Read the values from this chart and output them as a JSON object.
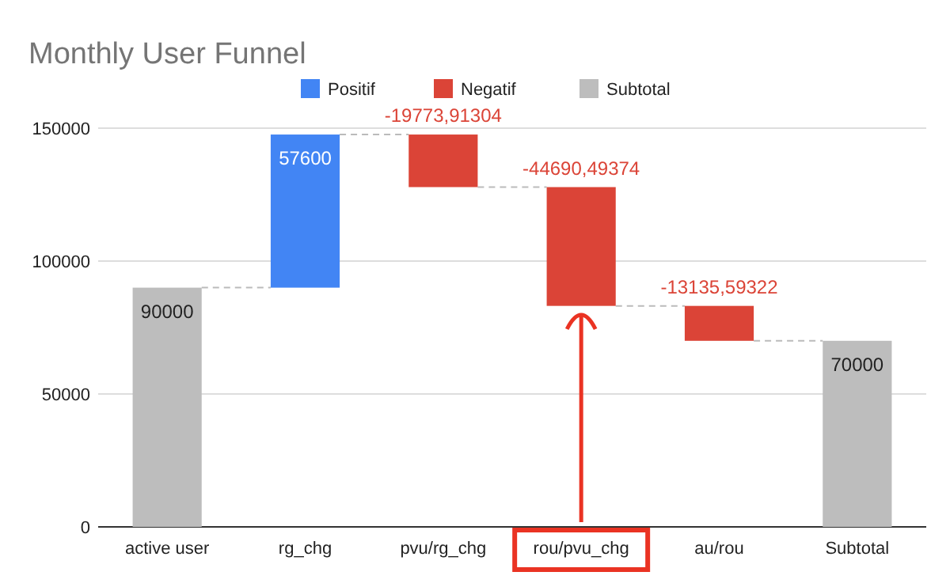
{
  "chart_data": {
    "type": "bar",
    "title": "Monthly User Funnel",
    "categories": [
      "active user",
      "rg_chg",
      "pvu/rg_chg",
      "rou/pvu_chg",
      "au/rou",
      "Subtotal"
    ],
    "series": [
      {
        "name": "Positif",
        "color": "#4285f4",
        "values": [
          null,
          57600,
          null,
          null,
          null,
          null
        ],
        "base": [
          null,
          90000,
          null,
          null,
          null,
          null
        ],
        "value_labels": [
          null,
          "57600",
          null,
          null,
          null,
          null
        ]
      },
      {
        "name": "Negatif",
        "color": "#db4437",
        "values": [
          null,
          null,
          -19773.91304,
          -44690.49374,
          -13135.59322,
          null
        ],
        "base": [
          null,
          null,
          147600,
          127826.08696,
          83135.59322,
          null
        ],
        "value_labels": [
          null,
          null,
          "-19773,91304",
          "-44690,49374",
          "-13135,59322",
          null
        ]
      },
      {
        "name": "Subtotal",
        "color": "#bdbdbd",
        "values": [
          90000,
          null,
          null,
          null,
          null,
          70000
        ],
        "base": [
          0,
          null,
          null,
          null,
          null,
          0
        ],
        "value_labels": [
          "90000",
          null,
          null,
          null,
          null,
          "70000"
        ]
      }
    ],
    "ylim": [
      0,
      150000
    ],
    "yticks": [
      0,
      50000,
      100000,
      150000
    ],
    "grid": "y",
    "legend": "top"
  }
}
